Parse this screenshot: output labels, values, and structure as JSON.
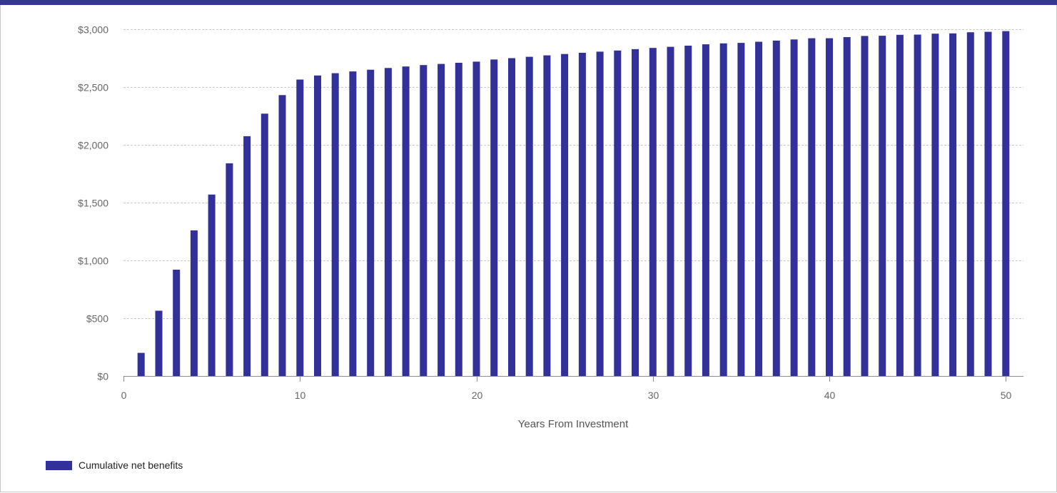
{
  "colors": {
    "bar": "#313199",
    "topbar": "#363696",
    "grid": "#c8c8c8",
    "axis": "#8c8c8c"
  },
  "chart_data": {
    "type": "bar",
    "x": [
      1,
      2,
      3,
      4,
      5,
      6,
      7,
      8,
      9,
      10,
      11,
      12,
      13,
      14,
      15,
      16,
      17,
      18,
      19,
      20,
      21,
      22,
      23,
      24,
      25,
      26,
      27,
      28,
      29,
      30,
      31,
      32,
      33,
      34,
      35,
      36,
      37,
      38,
      39,
      40,
      41,
      42,
      43,
      44,
      45,
      46,
      47,
      48,
      49,
      50
    ],
    "series": [
      {
        "name": "Cumulative net benefits",
        "values": [
          200,
          565,
          920,
          1260,
          1570,
          1840,
          2075,
          2270,
          2430,
          2565,
          2600,
          2620,
          2635,
          2650,
          2665,
          2678,
          2690,
          2700,
          2710,
          2720,
          2738,
          2750,
          2762,
          2774,
          2786,
          2796,
          2806,
          2816,
          2828,
          2838,
          2848,
          2858,
          2870,
          2878,
          2882,
          2892,
          2902,
          2912,
          2922,
          2922,
          2932,
          2942,
          2944,
          2952,
          2954,
          2962,
          2964,
          2974,
          2978,
          2984
        ]
      }
    ],
    "xlabel": "Years From Investment",
    "ylabel": "",
    "xlim": [
      0,
      51
    ],
    "ylim": [
      0,
      3000
    ],
    "x_ticks": [
      0,
      10,
      20,
      30,
      40,
      50
    ],
    "x_tick_labels": [
      "0",
      "10",
      "20",
      "30",
      "40",
      "50"
    ],
    "y_ticks": [
      0,
      500,
      1000,
      1500,
      2000,
      2500,
      3000
    ],
    "y_tick_labels": [
      "$0",
      "$500",
      "$1,000",
      "$1,500",
      "$2,000",
      "$2,500",
      "$3,000"
    ],
    "grid": true,
    "legend_position": "bottom-left"
  },
  "legend": {
    "label": "Cumulative net benefits"
  }
}
